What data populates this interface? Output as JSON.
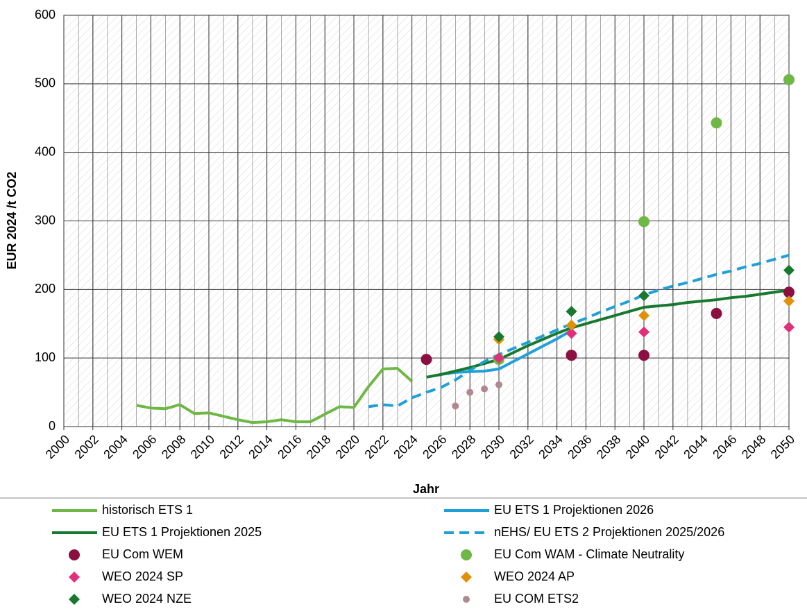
{
  "chart_data": {
    "type": "line",
    "y_label": "EUR 2024 /t CO2",
    "x_label": "Jahr",
    "xlim": [
      2000,
      2050
    ],
    "xticks": [
      2000,
      2002,
      2004,
      2006,
      2008,
      2010,
      2012,
      2014,
      2016,
      2018,
      2020,
      2022,
      2024,
      2026,
      2028,
      2030,
      2032,
      2034,
      2036,
      2038,
      2040,
      2042,
      2044,
      2046,
      2048,
      2050
    ],
    "ylim": [
      0,
      600
    ],
    "yticks": [
      0,
      100,
      200,
      300,
      400,
      500,
      600
    ],
    "grid": true,
    "series": [
      {
        "name": "historisch ETS 1",
        "color": "#6fb845",
        "style": "line",
        "x": [
          2005,
          2006,
          2007,
          2008,
          2009,
          2010,
          2011,
          2012,
          2013,
          2014,
          2015,
          2016,
          2017,
          2018,
          2019,
          2020,
          2021,
          2022,
          2023,
          2024
        ],
        "values": [
          31,
          27,
          26,
          32,
          19,
          20,
          15,
          10,
          6,
          7,
          10,
          7,
          7,
          18,
          29,
          28,
          58,
          84,
          85,
          66
        ]
      },
      {
        "name": "EU ETS 1 Projektionen 2026",
        "color": "#1fa0d8",
        "style": "line",
        "x": [
          2026,
          2027,
          2028,
          2029,
          2030,
          2031,
          2032,
          2033,
          2034,
          2035
        ],
        "values": [
          76,
          79,
          80,
          81,
          84,
          95,
          106,
          117,
          128,
          140
        ]
      },
      {
        "name": "EU ETS 1 Projektionen 2025",
        "color": "#17782f",
        "style": "line",
        "x": [
          2025,
          2026,
          2027,
          2028,
          2029,
          2030,
          2031,
          2032,
          2033,
          2034,
          2035,
          2036,
          2037,
          2038,
          2039,
          2040,
          2041,
          2042,
          2043,
          2044,
          2045,
          2046,
          2047,
          2048,
          2049,
          2050
        ],
        "values": [
          72,
          76,
          81,
          86,
          92,
          98,
          108,
          118,
          127,
          136,
          144,
          150,
          156,
          162,
          168,
          174,
          176,
          178,
          181,
          183,
          185,
          188,
          190,
          193,
          196,
          199
        ]
      },
      {
        "name": "nEHS/ EU ETS 2 Projektionen  2025/2026",
        "color": "#1fa0d8",
        "style": "dashed",
        "x": [
          2021,
          2022,
          2023,
          2024,
          2025,
          2026,
          2027,
          2028,
          2029,
          2030,
          2031,
          2032,
          2033,
          2034,
          2035,
          2036,
          2037,
          2038,
          2039,
          2040,
          2041,
          2042,
          2043,
          2044,
          2045,
          2046,
          2047,
          2048,
          2049,
          2050
        ],
        "values": [
          29,
          32,
          30,
          42,
          50,
          57,
          68,
          82,
          95,
          105,
          114,
          123,
          132,
          141,
          150,
          158,
          167,
          175,
          183,
          192,
          199,
          205,
          210,
          216,
          222,
          227,
          233,
          238,
          244,
          250
        ]
      },
      {
        "name": "EU Com WEM",
        "color": "#8b0f40",
        "style": "circle",
        "x": [
          2025,
          2035,
          2040,
          2045,
          2050
        ],
        "values": [
          98,
          104,
          104,
          165,
          196
        ]
      },
      {
        "name": "EU Com WAM - Climate Neutrality",
        "color": "#6fb845",
        "style": "circle",
        "x": [
          2030,
          2040,
          2045,
          2050
        ],
        "values": [
          98,
          299,
          443,
          506
        ]
      },
      {
        "name": "WEO 2024 SP",
        "color": "#e0307a",
        "style": "diamond",
        "x": [
          2030,
          2035,
          2040,
          2050
        ],
        "values": [
          100,
          136,
          138,
          145
        ]
      },
      {
        "name": "WEO 2024 AP",
        "color": "#e0900a",
        "style": "diamond",
        "x": [
          2030,
          2035,
          2040,
          2050
        ],
        "values": [
          127,
          148,
          162,
          183
        ]
      },
      {
        "name": "WEO 2024 NZE",
        "color": "#17782f",
        "style": "diamond",
        "x": [
          2030,
          2035,
          2040,
          2050
        ],
        "values": [
          131,
          168,
          191,
          228
        ]
      },
      {
        "name": "EU COM ETS2",
        "color": "#b08890",
        "style": "smallcircle",
        "x": [
          2027,
          2028,
          2029,
          2030
        ],
        "values": [
          30,
          50,
          55,
          61
        ]
      }
    ]
  }
}
